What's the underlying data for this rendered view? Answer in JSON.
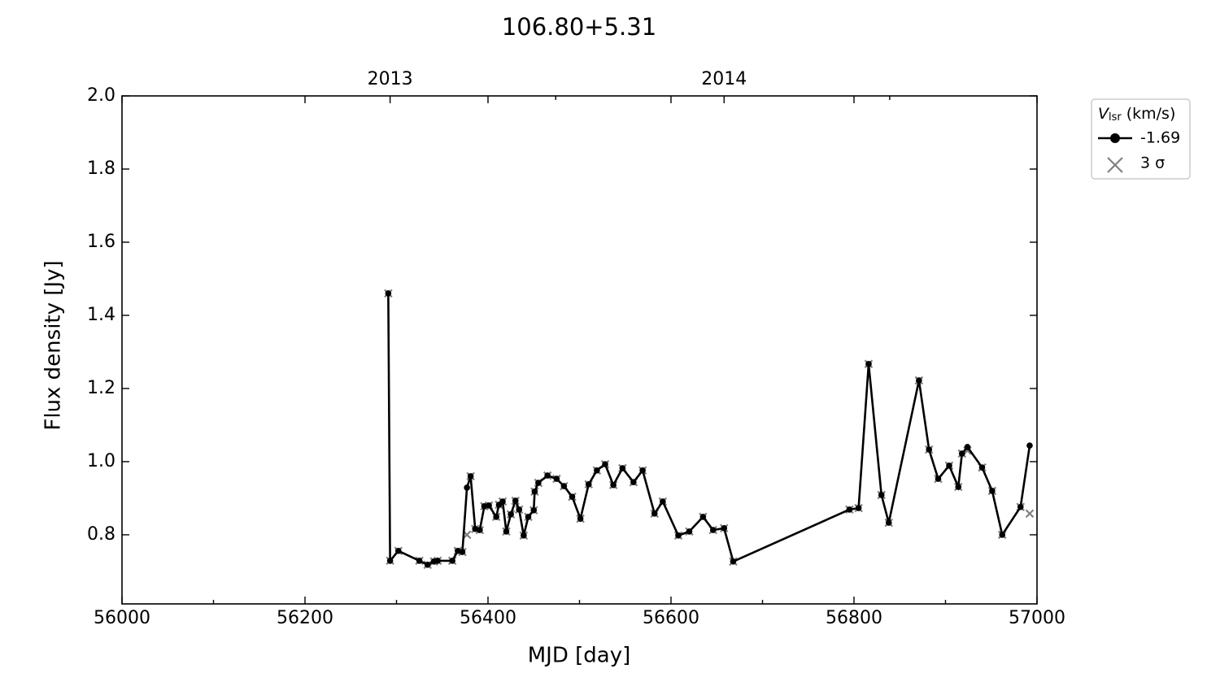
{
  "chart_data": {
    "type": "line",
    "title": "106.80+5.31",
    "xlabel": "MJD [day]",
    "ylabel": "Flux density [Jy]",
    "xlim": [
      56000,
      57000
    ],
    "ylim": [
      0.611,
      2.0
    ],
    "xticks": [
      56000,
      56200,
      56400,
      56600,
      56800,
      57000
    ],
    "xminorticks": [
      56100,
      56300,
      56500,
      56700,
      56900
    ],
    "yticks": [
      0.8,
      {
        "value": 1,
        "label": "1.0"
      },
      1.2,
      1.4,
      1.6,
      1.8,
      {
        "value": 2,
        "label": "2.0"
      }
    ],
    "x2ticks": [
      {
        "value": 56293,
        "label": "2013"
      },
      {
        "value": 56658,
        "label": "2014"
      }
    ],
    "x2minorticks": [
      56474,
      56839
    ],
    "legend_title_parts": [
      "V",
      "lsr",
      "(km/s)"
    ],
    "legend": "outside-right",
    "series": [
      {
        "name": "3 σ",
        "color": "#808080",
        "marker": "x",
        "x": [
          56291,
          56293,
          56302,
          56325,
          56334,
          56341,
          56345,
          56361,
          56367,
          56372,
          56377,
          56381,
          56386,
          56391,
          56396,
          56401,
          56409,
          56412,
          56416,
          56420,
          56425,
          56430,
          56434,
          56439,
          56444,
          56450,
          56451,
          56455,
          56465,
          56475,
          56483,
          56492,
          56501,
          56510,
          56519,
          56528,
          56537,
          56547,
          56559,
          56569,
          56582,
          56591,
          56608,
          56620,
          56635,
          56646,
          56658,
          56668,
          56795,
          56805,
          56816,
          56830,
          56838,
          56871,
          56882,
          56892,
          56904,
          56914,
          56918,
          56924,
          56940,
          56951,
          56962,
          56982,
          56992
        ],
        "values": [
          1.46,
          0.729,
          0.756,
          0.729,
          0.718,
          0.727,
          0.729,
          0.729,
          0.756,
          0.753,
          0.8,
          0.96,
          0.816,
          0.813,
          0.878,
          0.88,
          0.849,
          0.882,
          0.891,
          0.809,
          0.856,
          0.893,
          0.869,
          0.798,
          0.849,
          0.867,
          0.918,
          0.942,
          0.962,
          0.953,
          0.933,
          0.904,
          0.844,
          0.938,
          0.976,
          0.993,
          0.936,
          0.982,
          0.944,
          0.976,
          0.858,
          0.891,
          0.798,
          0.809,
          0.849,
          0.813,
          0.818,
          0.727,
          0.869,
          0.873,
          1.267,
          0.909,
          0.833,
          1.222,
          1.033,
          0.953,
          0.989,
          0.931,
          1.022,
          1.03,
          0.984,
          0.92,
          0.8,
          0.876,
          0.858
        ]
      },
      {
        "name": "-1.69",
        "color": "#000000",
        "marker": "o",
        "x": [
          56291,
          56293,
          56302,
          56325,
          56334,
          56341,
          56345,
          56361,
          56367,
          56372,
          56377,
          56381,
          56386,
          56391,
          56396,
          56401,
          56409,
          56412,
          56416,
          56420,
          56425,
          56430,
          56434,
          56439,
          56444,
          56450,
          56451,
          56455,
          56465,
          56475,
          56483,
          56492,
          56501,
          56510,
          56519,
          56528,
          56537,
          56547,
          56559,
          56569,
          56582,
          56591,
          56608,
          56620,
          56635,
          56646,
          56658,
          56668,
          56795,
          56805,
          56816,
          56830,
          56838,
          56871,
          56882,
          56892,
          56904,
          56914,
          56918,
          56924,
          56940,
          56951,
          56962,
          56982,
          56992
        ],
        "values": [
          1.46,
          0.729,
          0.756,
          0.729,
          0.718,
          0.727,
          0.729,
          0.729,
          0.756,
          0.753,
          0.929,
          0.96,
          0.816,
          0.813,
          0.878,
          0.88,
          0.849,
          0.882,
          0.891,
          0.809,
          0.856,
          0.893,
          0.869,
          0.798,
          0.849,
          0.867,
          0.918,
          0.942,
          0.962,
          0.953,
          0.933,
          0.904,
          0.844,
          0.938,
          0.976,
          0.993,
          0.936,
          0.982,
          0.944,
          0.976,
          0.858,
          0.891,
          0.798,
          0.809,
          0.849,
          0.813,
          0.818,
          0.727,
          0.869,
          0.873,
          1.267,
          0.909,
          0.833,
          1.222,
          1.033,
          0.953,
          0.989,
          0.931,
          1.022,
          1.04,
          0.984,
          0.92,
          0.8,
          0.876,
          1.044
        ]
      }
    ]
  }
}
